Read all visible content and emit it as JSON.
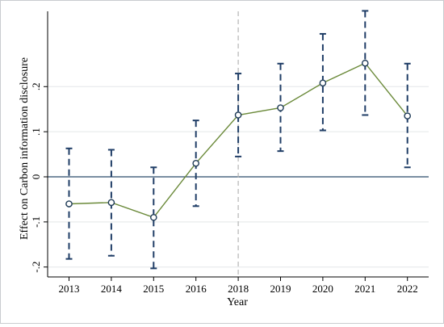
{
  "chart_data": {
    "type": "line",
    "xlabel": "Year",
    "ylabel": "Effect on Carbon information disclosure",
    "categories": [
      "2013",
      "2014",
      "2015",
      "2016",
      "2018",
      "2019",
      "2020",
      "2021",
      "2022"
    ],
    "yticks": [
      -0.2,
      -0.1,
      0,
      0.1,
      0.2
    ],
    "ytick_labels": [
      "-.2",
      "-.1",
      "0",
      ".1",
      ".2"
    ],
    "ylim": [
      -0.222,
      0.367
    ],
    "grid": true,
    "reference_lines": {
      "horizontal_at": 0,
      "vertical_at_category": "2018"
    },
    "series": [
      {
        "values": [
          -0.06,
          -0.057,
          -0.09,
          0.03,
          0.137,
          0.153,
          0.208,
          0.252,
          0.135
        ],
        "ci_lower": [
          -0.182,
          -0.175,
          -0.203,
          -0.065,
          0.045,
          0.057,
          0.103,
          0.137,
          0.021
        ],
        "ci_upper": [
          0.063,
          0.06,
          0.021,
          0.125,
          0.229,
          0.251,
          0.317,
          0.368,
          0.251
        ]
      }
    ]
  },
  "colors": {
    "line": "#6b8a3a",
    "marker": "#1f3b57",
    "error_bar": "#1f3d66",
    "zero_line": "#2a4a6b",
    "vertical_line": "#b4b4b4",
    "grid": "#e3e6e8",
    "axis": "#000000"
  }
}
